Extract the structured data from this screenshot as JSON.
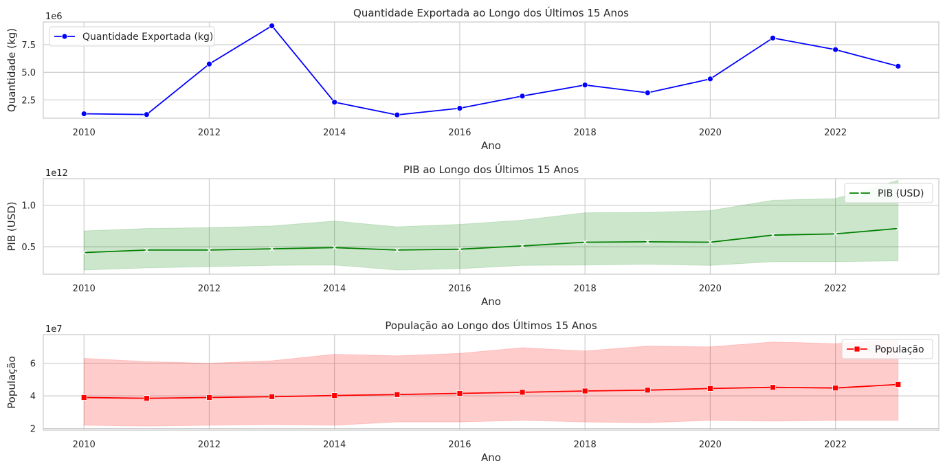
{
  "colors": {
    "exports": "#0000ff",
    "gdp": "#008000",
    "population": "#ff0000",
    "grid": "#cccccc",
    "spine": "#cccccc",
    "text": "#262626"
  },
  "chart_data": [
    {
      "type": "line",
      "title": "Quantidade Exportada ao Longo dos Últimos 15 Anos",
      "xlabel": "Ano",
      "ylabel": "Quantidade (kg)",
      "y_offset_label": "1e6",
      "x": [
        2010,
        2011,
        2012,
        2013,
        2014,
        2015,
        2016,
        2017,
        2018,
        2019,
        2020,
        2021,
        2022,
        2023
      ],
      "xlim": [
        2009.35,
        2023.65
      ],
      "ylim": [
        0.85,
        9.55
      ],
      "x_ticks": [
        2010,
        2012,
        2014,
        2016,
        2018,
        2020,
        2022
      ],
      "x_tick_labels": [
        "2010",
        "2012",
        "2014",
        "2016",
        "2018",
        "2020",
        "2022"
      ],
      "y_ticks": [
        2.5,
        5.0,
        7.5
      ],
      "y_tick_labels": [
        "2.5",
        "5.0",
        "7.5"
      ],
      "grid": true,
      "legend": "upper-left",
      "marker": "circle",
      "series": [
        {
          "name": "Quantidade Exportada (kg)",
          "values": [
            1.25,
            1.18,
            5.75,
            9.2,
            2.3,
            1.15,
            1.75,
            2.85,
            3.85,
            3.15,
            4.4,
            8.1,
            7.05,
            5.55
          ]
        }
      ]
    },
    {
      "type": "line",
      "title": "PIB ao Longo dos Últimos 15 Anos",
      "xlabel": "Ano",
      "ylabel": "PIB (USD)",
      "y_offset_label": "1e12",
      "x": [
        2010,
        2011,
        2012,
        2013,
        2014,
        2015,
        2016,
        2017,
        2018,
        2019,
        2020,
        2021,
        2022,
        2023
      ],
      "xlim": [
        2009.35,
        2023.65
      ],
      "ylim": [
        0.17,
        1.32
      ],
      "x_ticks": [
        2010,
        2012,
        2014,
        2016,
        2018,
        2020,
        2022
      ],
      "x_tick_labels": [
        "2010",
        "2012",
        "2014",
        "2016",
        "2018",
        "2020",
        "2022"
      ],
      "y_ticks": [
        0.5,
        1.0
      ],
      "y_tick_labels": [
        "0.5",
        "1.0"
      ],
      "grid": true,
      "legend": "upper-right",
      "marker": "x",
      "series": [
        {
          "name": "PIB (USD)",
          "values": [
            0.43,
            0.46,
            0.46,
            0.475,
            0.49,
            0.46,
            0.47,
            0.51,
            0.555,
            0.56,
            0.555,
            0.64,
            0.655,
            0.72
          ],
          "band_upper": [
            0.69,
            0.72,
            0.73,
            0.75,
            0.81,
            0.74,
            0.77,
            0.82,
            0.91,
            0.915,
            0.935,
            1.06,
            1.08,
            1.3
          ],
          "band_lower": [
            0.22,
            0.245,
            0.26,
            0.275,
            0.28,
            0.22,
            0.235,
            0.275,
            0.28,
            0.29,
            0.275,
            0.32,
            0.32,
            0.33
          ]
        }
      ]
    },
    {
      "type": "line",
      "title": "População ao Longo dos Últimos 15 Anos",
      "xlabel": "Ano",
      "ylabel": "População",
      "y_offset_label": "1e7",
      "x": [
        2010,
        2011,
        2012,
        2013,
        2014,
        2015,
        2016,
        2017,
        2018,
        2019,
        2020,
        2021,
        2022,
        2023
      ],
      "xlim": [
        2009.35,
        2023.65
      ],
      "ylim": [
        1.9,
        7.75
      ],
      "x_ticks": [
        2010,
        2012,
        2014,
        2016,
        2018,
        2020,
        2022
      ],
      "x_tick_labels": [
        "2010",
        "2012",
        "2014",
        "2016",
        "2018",
        "2020",
        "2022"
      ],
      "y_ticks": [
        2,
        4,
        6
      ],
      "y_tick_labels": [
        "2",
        "4",
        "6"
      ],
      "grid": true,
      "legend": "upper-right",
      "marker": "square",
      "series": [
        {
          "name": "População",
          "values": [
            3.9,
            3.85,
            3.9,
            3.95,
            4.02,
            4.08,
            4.15,
            4.22,
            4.3,
            4.35,
            4.45,
            4.52,
            4.48,
            4.7
          ],
          "band_upper": [
            6.3,
            6.1,
            6.0,
            6.15,
            6.55,
            6.45,
            6.6,
            6.95,
            6.75,
            7.05,
            7.0,
            7.3,
            7.2,
            7.45
          ],
          "band_lower": [
            2.2,
            2.15,
            2.2,
            2.25,
            2.2,
            2.4,
            2.4,
            2.5,
            2.4,
            2.35,
            2.5,
            2.45,
            2.5,
            2.5
          ]
        }
      ]
    }
  ]
}
